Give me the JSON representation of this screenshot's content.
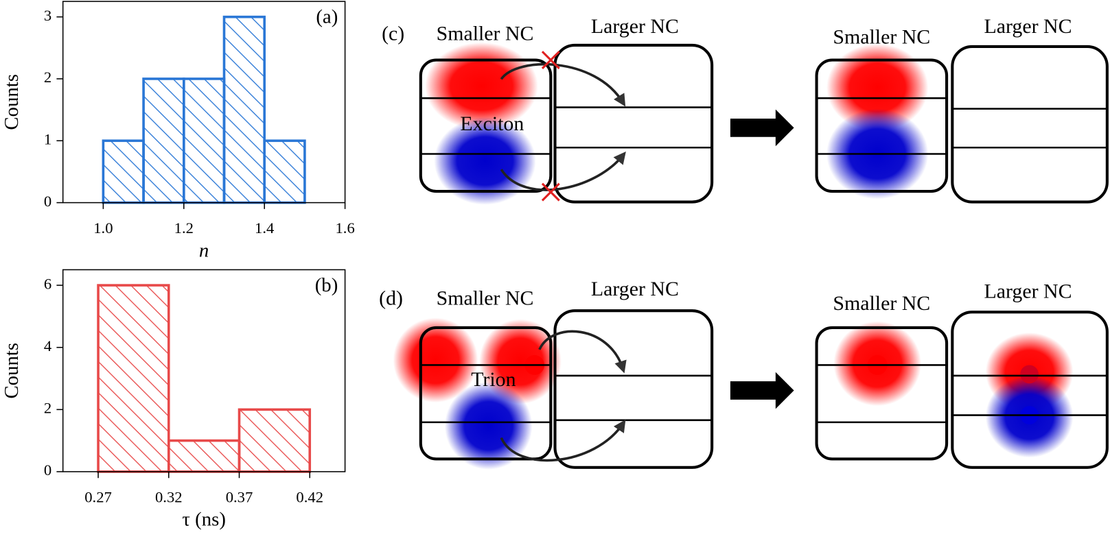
{
  "chart_data": [
    {
      "type": "histogram",
      "panel_label": "(a)",
      "xlabel": "n",
      "ylabel": "Counts",
      "color": "#2a77d6",
      "bins": [
        1.0,
        1.1,
        1.2,
        1.3,
        1.4,
        1.5
      ],
      "values": [
        1,
        2,
        2,
        3,
        1
      ],
      "xlim": [
        0.9,
        1.6
      ],
      "ylim": [
        0,
        3.25
      ],
      "xticks": [
        {
          "value": 1.0,
          "label": "1.0"
        },
        1.2,
        1.4,
        1.6
      ],
      "yticks": [
        0,
        1,
        2,
        3
      ]
    },
    {
      "type": "histogram",
      "panel_label": "(b)",
      "xlabel": "τ (ns)",
      "ylabel": "Counts",
      "color": "#e84a4a",
      "bins": [
        0.27,
        0.32,
        0.37,
        0.42
      ],
      "values": [
        6,
        1,
        2
      ],
      "xlim": [
        0.245,
        0.445
      ],
      "ylim": [
        0,
        6.5
      ],
      "xticks": [
        0.27,
        0.32,
        0.37,
        0.42
      ],
      "yticks": [
        0,
        2,
        4,
        6
      ]
    }
  ],
  "diagram": {
    "c": {
      "label": "(c)",
      "before": {
        "smaller": "Smaller NC",
        "larger": "Larger NC",
        "particle": "Exciton"
      },
      "after": {
        "smaller": "Smaller NC",
        "larger": "Larger NC"
      }
    },
    "d": {
      "label": "(d)",
      "before": {
        "smaller": "Smaller NC",
        "larger": "Larger NC",
        "particle": "Trion"
      },
      "after": {
        "smaller": "Smaller NC",
        "larger": "Larger NC"
      }
    }
  }
}
